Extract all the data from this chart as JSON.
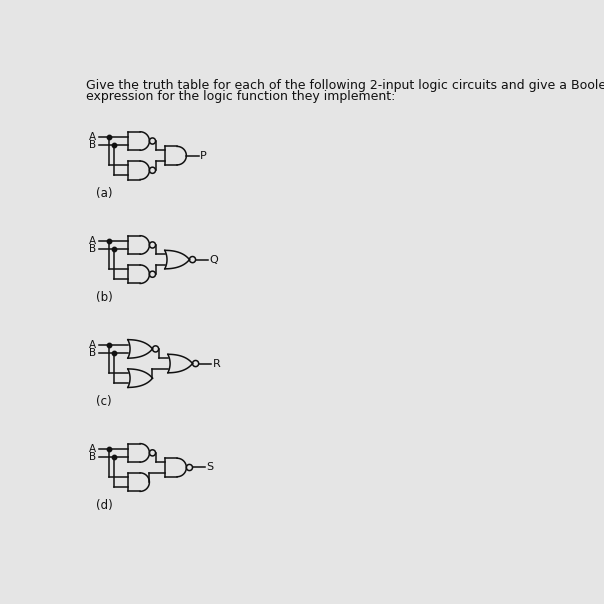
{
  "title_line1": "Give the truth table for each of the following 2-input logic circuits and give a Boolean",
  "title_line2": "expression for the logic function they implement:",
  "bg_color": "#e5e5e5",
  "line_color": "#111111",
  "circuits": [
    {
      "label": "(a)",
      "output": "P",
      "g1": "AND",
      "g1b": true,
      "g2": "AND",
      "g2b": true,
      "g3": "AND",
      "g3b": false
    },
    {
      "label": "(b)",
      "output": "Q",
      "g1": "AND",
      "g1b": true,
      "g2": "AND",
      "g2b": true,
      "g3": "OR",
      "g3b": true
    },
    {
      "label": "(c)",
      "output": "R",
      "g1": "OR",
      "g1b": true,
      "g2": "OR",
      "g2b": false,
      "g3": "OR",
      "g3b": true
    },
    {
      "label": "(d)",
      "output": "S",
      "g1": "AND",
      "g1b": true,
      "g2": "AND",
      "g2b": false,
      "g3": "AND",
      "g3b": true
    }
  ],
  "fig_w": 6.04,
  "fig_h": 6.04,
  "dpi": 100
}
